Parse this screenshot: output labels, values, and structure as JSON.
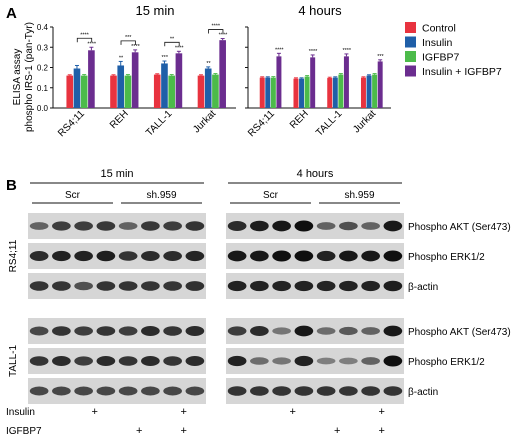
{
  "panels": {
    "a": "A",
    "b": "B"
  },
  "chart_data": [
    {
      "type": "bar",
      "title": "15 min",
      "ylabel_lines": [
        "ELISA assay",
        "phospho IRS-1 (pan-Tyr)"
      ],
      "categories": [
        "RS4;11",
        "REH",
        "TALL-1",
        "Jurkat"
      ],
      "ylim": [
        0,
        0.4
      ],
      "yticks": [
        0.0,
        0.1,
        0.2,
        0.3,
        0.4
      ],
      "ytick_labels": [
        "0.0",
        "0.1",
        "0.2",
        "0.3",
        "0.4"
      ],
      "series": [
        {
          "name": "Control",
          "color": "#e8333f",
          "values": [
            0.16,
            0.16,
            0.165,
            0.16
          ],
          "errors": [
            0.004,
            0.004,
            0.004,
            0.004
          ]
        },
        {
          "name": "Insulin",
          "color": "#1f5fa8",
          "values": [
            0.195,
            0.21,
            0.22,
            0.195
          ],
          "errors": [
            0.015,
            0.02,
            0.012,
            0.008
          ]
        },
        {
          "name": "IGFBP7",
          "color": "#4cbb4a",
          "values": [
            0.16,
            0.16,
            0.16,
            0.165
          ],
          "errors": [
            0.005,
            0.005,
            0.005,
            0.005
          ]
        },
        {
          "name": "Insulin + IGFBP7",
          "color": "#6b2d8f",
          "values": [
            0.285,
            0.275,
            0.27,
            0.335
          ],
          "errors": [
            0.015,
            0.012,
            0.01,
            0.008
          ]
        }
      ],
      "annotations": {
        "bar_labels": [
          {
            "category": 0,
            "series": 3,
            "text": "****"
          },
          {
            "category": 1,
            "series": 1,
            "text": "**"
          },
          {
            "category": 1,
            "series": 3,
            "text": "****"
          },
          {
            "category": 2,
            "series": 1,
            "text": "***"
          },
          {
            "category": 2,
            "series": 3,
            "text": "****"
          },
          {
            "category": 3,
            "series": 1,
            "text": "**"
          },
          {
            "category": 3,
            "series": 3,
            "text": "****"
          }
        ],
        "brackets": [
          {
            "category": 0,
            "from": 1,
            "to": 3,
            "text": "****"
          },
          {
            "category": 1,
            "from": 1,
            "to": 3,
            "text": "***"
          },
          {
            "category": 2,
            "from": 1,
            "to": 3,
            "text": "**"
          },
          {
            "category": 3,
            "from": 1,
            "to": 3,
            "text": "****"
          }
        ]
      }
    },
    {
      "type": "bar",
      "title": "4 hours",
      "categories": [
        "RS4;11",
        "REH",
        "TALL-1",
        "Jurkat"
      ],
      "ylim": [
        0,
        0.4
      ],
      "series": [
        {
          "name": "Control",
          "color": "#e8333f",
          "values": [
            0.15,
            0.145,
            0.148,
            0.15
          ],
          "errors": [
            0.004,
            0.004,
            0.004,
            0.004
          ]
        },
        {
          "name": "Insulin",
          "color": "#1f5fa8",
          "values": [
            0.15,
            0.145,
            0.15,
            0.16
          ],
          "errors": [
            0.004,
            0.004,
            0.004,
            0.004
          ]
        },
        {
          "name": "IGFBP7",
          "color": "#4cbb4a",
          "values": [
            0.15,
            0.155,
            0.165,
            0.165
          ],
          "errors": [
            0.005,
            0.005,
            0.005,
            0.005
          ]
        },
        {
          "name": "Insulin + IGFBP7",
          "color": "#6b2d8f",
          "values": [
            0.255,
            0.25,
            0.255,
            0.23
          ],
          "errors": [
            0.015,
            0.012,
            0.012,
            0.008
          ]
        }
      ],
      "annotations": {
        "bar_labels": [
          {
            "category": 0,
            "series": 3,
            "text": "****"
          },
          {
            "category": 1,
            "series": 3,
            "text": "****"
          },
          {
            "category": 2,
            "series": 3,
            "text": "****"
          },
          {
            "category": 3,
            "series": 3,
            "text": "***"
          }
        ]
      }
    }
  ],
  "blots": {
    "groups": [
      {
        "title": "15 min",
        "subgroups": [
          "Scr",
          "sh.959"
        ]
      },
      {
        "title": "4 hours",
        "subgroups": [
          "Scr",
          "sh.959"
        ]
      }
    ],
    "cell_lines": [
      "RS4;11",
      "TALL-1"
    ],
    "proteins": [
      "Phospho AKT (Ser473)",
      "Phospho ERK1/2",
      "β-actin"
    ],
    "treatment_rows": [
      {
        "label": "Insulin",
        "pattern": [
          "",
          "+",
          "",
          "+",
          "",
          "+",
          "",
          "+"
        ]
      },
      {
        "label": "IGFBP7",
        "pattern": [
          "",
          "",
          "+",
          "+",
          "",
          "",
          "+",
          "+"
        ]
      }
    ],
    "band_intensity": [
      [
        [
          [
            0.55,
            0.75,
            0.75,
            0.78,
            0.55,
            0.78,
            0.75,
            0.8
          ],
          [
            0.85,
            0.92,
            0.95,
            1.0,
            0.55,
            0.65,
            0.55,
            0.95
          ]
        ],
        [
          [
            0.85,
            0.9,
            0.9,
            0.92,
            0.8,
            0.85,
            0.85,
            0.88
          ],
          [
            0.95,
            0.95,
            1.0,
            1.0,
            0.9,
            0.95,
            0.95,
            1.0
          ]
        ],
        [
          [
            0.8,
            0.8,
            0.65,
            0.8,
            0.8,
            0.8,
            0.8,
            0.82
          ],
          [
            0.9,
            0.9,
            0.9,
            0.9,
            0.88,
            0.9,
            0.9,
            0.92
          ]
        ]
      ],
      [
        [
          [
            0.7,
            0.8,
            0.75,
            0.8,
            0.75,
            0.85,
            0.8,
            0.85
          ],
          [
            0.75,
            0.85,
            0.45,
            0.95,
            0.5,
            0.6,
            0.55,
            0.95
          ]
        ],
        [
          [
            0.8,
            0.85,
            0.75,
            0.85,
            0.8,
            0.85,
            0.8,
            0.85
          ],
          [
            0.9,
            0.5,
            0.45,
            0.9,
            0.4,
            0.4,
            0.55,
            1.0
          ]
        ],
        [
          [
            0.7,
            0.7,
            0.7,
            0.7,
            0.7,
            0.7,
            0.7,
            0.7
          ],
          [
            0.8,
            0.8,
            0.8,
            0.8,
            0.8,
            0.8,
            0.8,
            0.8
          ]
        ]
      ]
    ]
  }
}
